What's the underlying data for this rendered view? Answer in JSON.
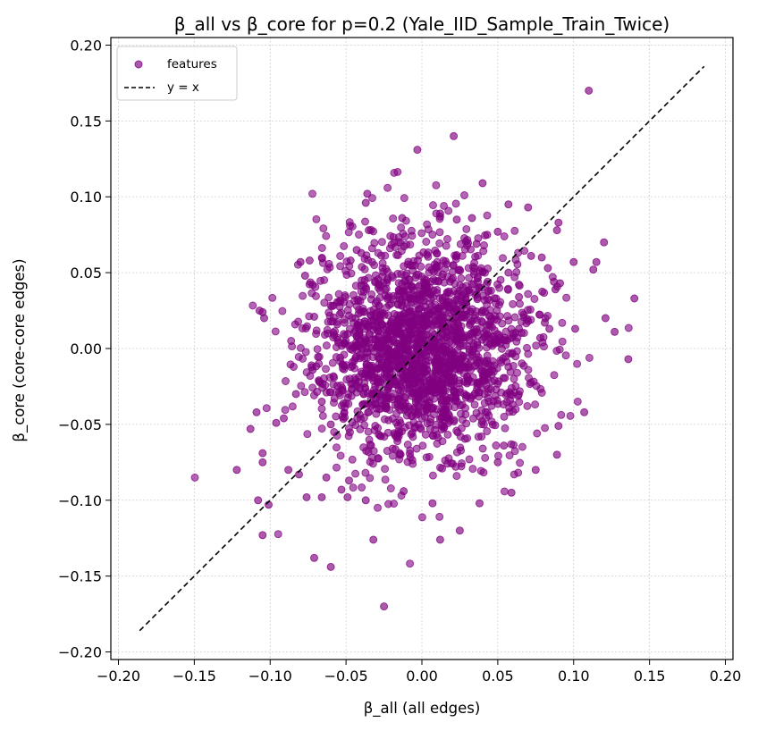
{
  "chart_data": {
    "type": "scatter",
    "title": "β_all vs β_core for p=0.2 (Yale_IID_Sample_Train_Twice)",
    "xlabel": "β_all (all edges)",
    "ylabel": "β_core (core-core edges)",
    "xlim": [
      -0.205,
      0.205
    ],
    "ylim": [
      -0.205,
      0.205
    ],
    "xticks": [
      -0.2,
      -0.15,
      -0.1,
      -0.05,
      0.0,
      0.05,
      0.1,
      0.15,
      0.2
    ],
    "yticks": [
      -0.2,
      -0.15,
      -0.1,
      -0.05,
      0.0,
      0.05,
      0.1,
      0.15,
      0.2
    ],
    "xtick_labels": [
      "−0.20",
      "−0.15",
      "−0.10",
      "−0.05",
      "0.00",
      "0.05",
      "0.10",
      "0.15",
      "0.20"
    ],
    "ytick_labels": [
      "−0.20",
      "−0.15",
      "−0.10",
      "−0.05",
      "0.00",
      "0.05",
      "0.10",
      "0.15",
      "0.20"
    ],
    "grid": true,
    "legend_position": "upper-left",
    "series": [
      {
        "name": "features",
        "kind": "scatter",
        "color": "#800080",
        "cluster_note": "dense cloud centered near (0, 0) with std ≈ 0.035",
        "x": [
          0.11,
          0.021,
          -0.003,
          0.04,
          -0.036,
          -0.037,
          0.057,
          0.07,
          0.033,
          0.023,
          0.012,
          -0.088,
          -0.081,
          -0.063,
          -0.037,
          -0.032,
          -0.06,
          -0.071,
          -0.122,
          -0.105,
          -0.101,
          -0.108,
          -0.105,
          -0.105,
          -0.109,
          -0.107,
          -0.104,
          -0.105,
          -0.113,
          -0.091,
          0.12,
          0.115,
          0.1,
          0.113,
          0.101,
          0.121,
          0.127,
          0.14,
          0.136,
          0.09,
          0.107,
          0.089,
          0.075,
          0.059,
          0.05,
          0.054,
          -0.012,
          0.025,
          0.012,
          -0.025,
          0.007,
          0.038,
          -0.049,
          -0.053,
          -0.048,
          -0.066,
          -0.076,
          -0.096,
          -0.083,
          -0.047,
          0.09,
          0.089,
          0.079,
          0.072,
          0.083,
          0.057,
          0.064,
          0.087,
          0.088,
          0.091,
          0.081,
          0.084,
          0.078,
          0.07,
          0.064,
          0.06,
          -0.08,
          -0.074,
          -0.077,
          -0.072,
          -0.071,
          -0.072,
          -0.068,
          -0.066,
          -0.06,
          0.05,
          0.036,
          -0.043,
          -0.04,
          -0.035,
          -0.013,
          0.012,
          0.043
        ],
        "y": [
          0.17,
          0.14,
          0.131,
          0.109,
          0.102,
          0.096,
          0.095,
          0.093,
          0.086,
          0.085,
          0.087,
          -0.08,
          -0.083,
          -0.085,
          -0.1,
          -0.126,
          -0.144,
          -0.138,
          -0.08,
          -0.075,
          -0.103,
          -0.1,
          -0.123,
          -0.069,
          -0.042,
          0.025,
          0.02,
          0.024,
          -0.053,
          -0.046,
          0.07,
          0.057,
          0.057,
          0.052,
          0.013,
          0.02,
          0.011,
          0.033,
          -0.007,
          -0.051,
          -0.042,
          -0.07,
          -0.08,
          -0.095,
          -0.075,
          -0.064,
          -0.094,
          -0.12,
          -0.126,
          -0.17,
          -0.102,
          -0.102,
          -0.098,
          -0.093,
          -0.087,
          -0.098,
          -0.098,
          -0.049,
          -0.03,
          0.058,
          0.083,
          0.078,
          0.06,
          0.061,
          0.053,
          0.05,
          0.034,
          0.044,
          0.039,
          0.043,
          0.017,
          0.013,
          0.007,
          0.018,
          0.013,
          0.01,
          0.057,
          0.058,
          0.048,
          0.042,
          0.021,
          -0.014,
          -0.021,
          -0.035,
          -0.05,
          0.077,
          0.069,
          0.065,
          0.063,
          0.078,
          0.086,
          0.089,
          0.075
        ],
        "cluster": {
          "center": [
            0.0,
            0.0
          ],
          "std": [
            0.035,
            0.035
          ],
          "n": 2000,
          "seed": 7
        }
      },
      {
        "name": "y = x",
        "kind": "line",
        "color": "#000000",
        "dash": "dashed",
        "x": [
          -0.186,
          0.186
        ],
        "y": [
          -0.186,
          0.186
        ]
      }
    ]
  }
}
